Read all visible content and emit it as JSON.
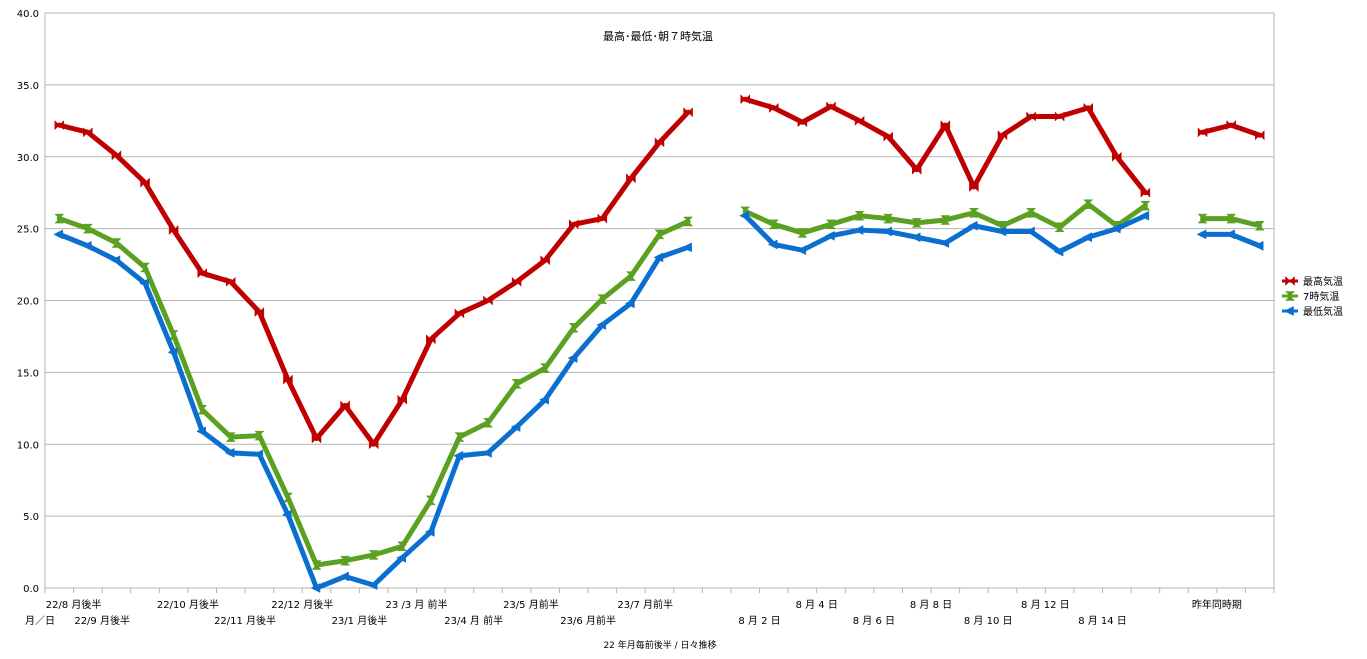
{
  "chart_data": {
    "type": "line",
    "title": "最高･最低･朝７時気温",
    "xlabel": "22 年月毎前後半 / 日々推移",
    "xlabel_prefix": "月／日",
    "ylim": [
      0,
      40
    ],
    "yticks": [
      "0.0",
      "5.0",
      "10.0",
      "15.0",
      "20.0",
      "25.0",
      "30.0",
      "35.0",
      "40.0"
    ],
    "grid": true,
    "legend_position": "right",
    "num_slots": 43,
    "x_labels": [
      {
        "slot": 1,
        "row": 1,
        "text": "22/8 月後半"
      },
      {
        "slot": 2,
        "row": 2,
        "text": "22/9 月後半"
      },
      {
        "slot": 5,
        "row": 1,
        "text": "22/10 月後半"
      },
      {
        "slot": 7,
        "row": 2,
        "text": "22/11 月後半"
      },
      {
        "slot": 9,
        "row": 1,
        "text": "22/12 月後半"
      },
      {
        "slot": 11,
        "row": 2,
        "text": "23/1 月後半"
      },
      {
        "slot": 13,
        "row": 1,
        "text": "23 /3 月 前半"
      },
      {
        "slot": 15,
        "row": 2,
        "text": "23/4 月 前半"
      },
      {
        "slot": 17,
        "row": 1,
        "text": "23/5 月前半"
      },
      {
        "slot": 19,
        "row": 2,
        "text": "23/6 月前半"
      },
      {
        "slot": 21,
        "row": 1,
        "text": "23/7 月前半"
      },
      {
        "slot": 25,
        "row": 2,
        "text": "8 月 2 日"
      },
      {
        "slot": 27,
        "row": 1,
        "text": "8 月 4 日"
      },
      {
        "slot": 29,
        "row": 2,
        "text": "8 月 6 日"
      },
      {
        "slot": 31,
        "row": 1,
        "text": "8 月 8 日"
      },
      {
        "slot": 33,
        "row": 2,
        "text": "8 月 10 日"
      },
      {
        "slot": 35,
        "row": 1,
        "text": "8 月 12 日"
      },
      {
        "slot": 37,
        "row": 2,
        "text": "8 月 14 日"
      },
      {
        "slot": 41,
        "row": 1,
        "text": "昨年同時期"
      }
    ],
    "series": [
      {
        "name": "最高気温",
        "color": "#c00000",
        "marker": "bowtie",
        "values": [
          32.2,
          31.7,
          30.1,
          28.2,
          24.9,
          21.9,
          21.3,
          19.2,
          14.5,
          10.4,
          12.7,
          10.0,
          13.1,
          17.3,
          19.1,
          20.0,
          21.3,
          22.8,
          25.3,
          25.7,
          28.5,
          31.0,
          33.1,
          null,
          34.0,
          33.4,
          32.4,
          33.5,
          32.5,
          31.4,
          29.1,
          32.2,
          27.9,
          31.5,
          32.8,
          32.8,
          33.4,
          30.0,
          27.5,
          null,
          31.7,
          32.2,
          31.5
        ]
      },
      {
        "name": "7時気温",
        "color": "#5aa021",
        "marker": "hourglass",
        "values": [
          25.7,
          25.0,
          24.0,
          22.3,
          17.6,
          12.4,
          10.5,
          10.6,
          6.3,
          1.6,
          1.9,
          2.3,
          2.9,
          6.1,
          10.5,
          11.5,
          14.2,
          15.3,
          18.1,
          20.1,
          21.7,
          24.6,
          25.5,
          null,
          26.2,
          25.3,
          24.7,
          25.3,
          25.9,
          25.7,
          25.4,
          25.6,
          26.1,
          25.2,
          26.1,
          25.1,
          26.7,
          25.2,
          26.6,
          null,
          25.7,
          25.7,
          25.2
        ]
      },
      {
        "name": "最低気温",
        "color": "#0a6fcf",
        "marker": "left-triangle",
        "values": [
          24.6,
          23.8,
          22.8,
          21.2,
          16.4,
          10.9,
          9.4,
          9.3,
          5.1,
          0.0,
          0.8,
          0.2,
          2.1,
          3.9,
          9.2,
          9.4,
          11.2,
          13.1,
          16.0,
          18.3,
          19.8,
          23.0,
          23.7,
          null,
          25.9,
          23.9,
          23.5,
          24.5,
          24.9,
          24.8,
          24.4,
          24.0,
          25.2,
          24.8,
          24.8,
          23.4,
          24.4,
          25.0,
          25.9,
          null,
          24.6,
          24.6,
          23.8
        ]
      }
    ]
  }
}
